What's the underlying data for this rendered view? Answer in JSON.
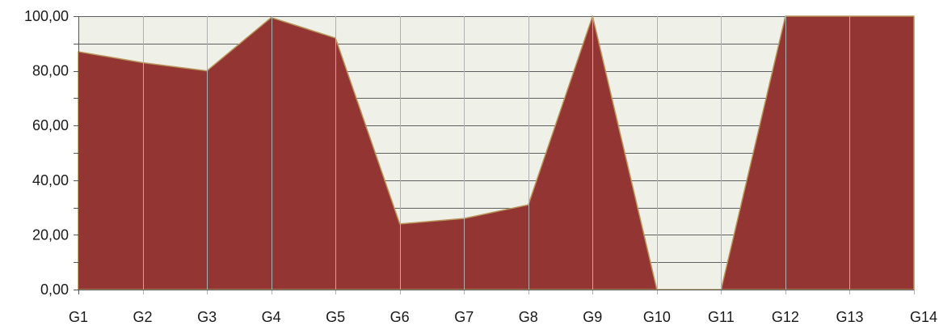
{
  "chart_data": {
    "type": "area",
    "categories": [
      "G1",
      "G2",
      "G3",
      "G4",
      "G5",
      "G6",
      "G7",
      "G8",
      "G9",
      "G10",
      "G11",
      "G12",
      "G13",
      "G14"
    ],
    "values": [
      87,
      83,
      80,
      99.5,
      92,
      24,
      26,
      31,
      100,
      0,
      0,
      100,
      100,
      100
    ],
    "y_tick_labels": [
      "0,00",
      "20,00",
      "40,00",
      "60,00",
      "80,00",
      "100,00"
    ],
    "ylim": [
      0,
      100
    ],
    "y_major_step": 20,
    "y_minor_step": 10,
    "grid": true,
    "colors": {
      "fill": "#923533",
      "line": "#b8955a",
      "plot_bg": "#eff1e8",
      "grid": "#5f5f5f",
      "vertical_lines": "#b0b0b0"
    }
  }
}
